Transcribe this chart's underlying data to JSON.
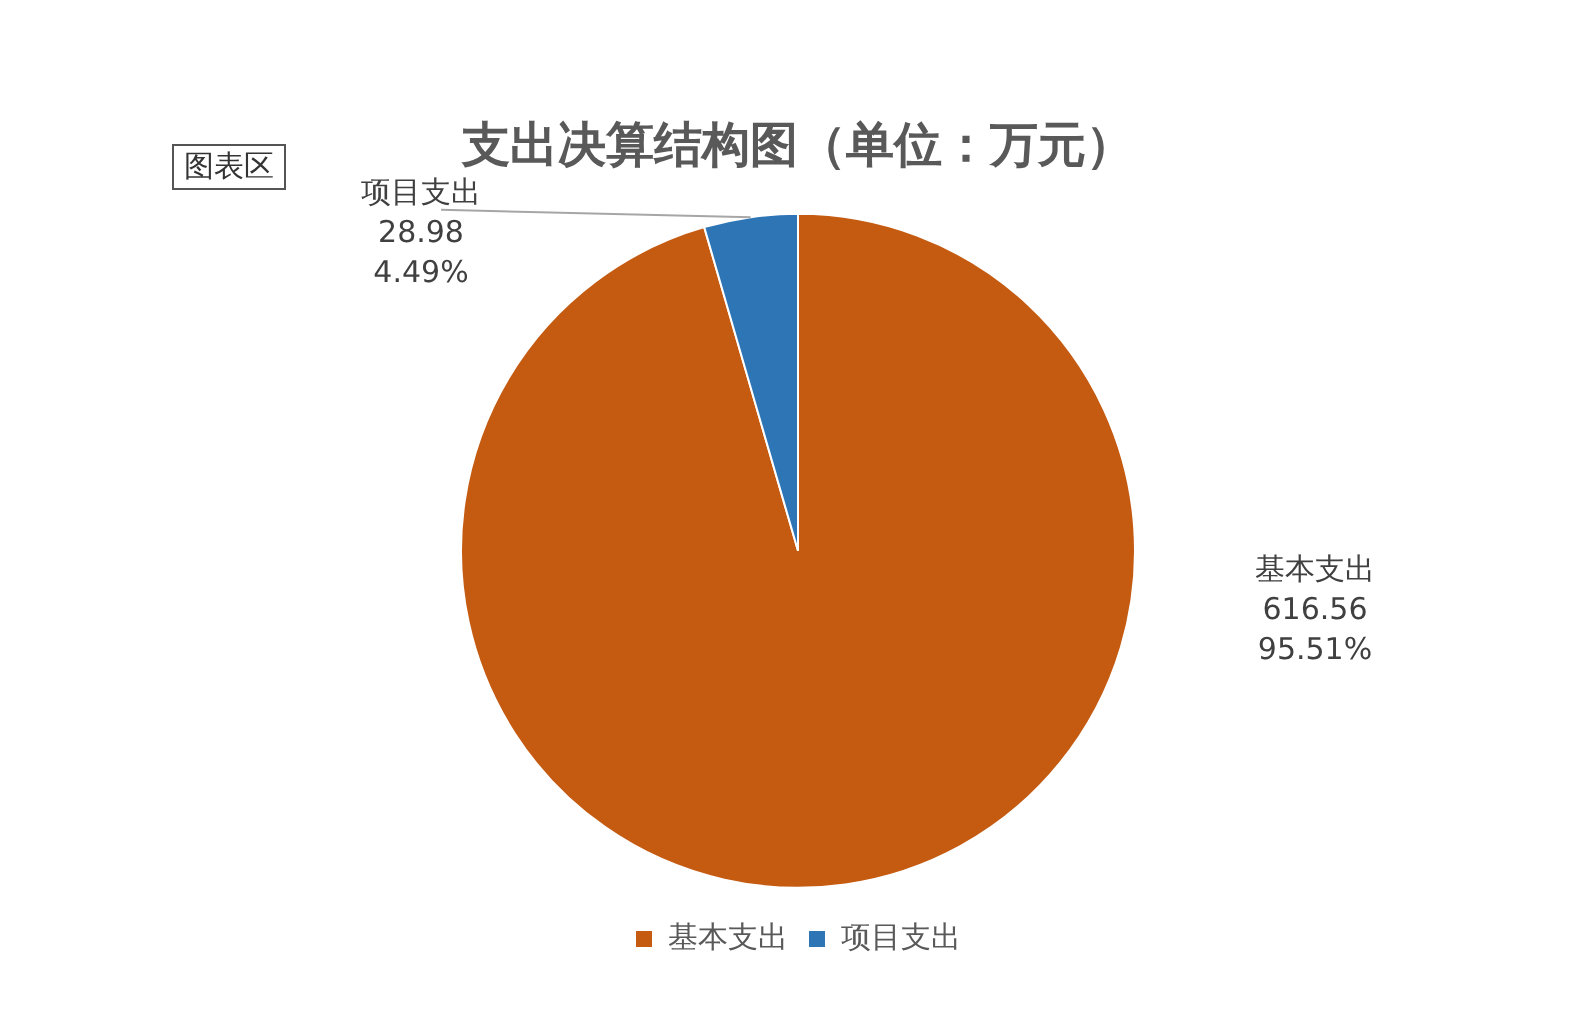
{
  "chart_data": {
    "type": "pie",
    "title": "支出决算结构图（单位：万元）",
    "categories": [
      "基本支出",
      "项目支出"
    ],
    "values": [
      616.56,
      28.98
    ],
    "colors": [
      "#c55a11",
      "#2e75b6"
    ],
    "value_labels": [
      "616.56\n95.51%",
      "28.98\n4.49%"
    ],
    "legend": "bottom",
    "annotations": [
      "图表区"
    ]
  }
}
